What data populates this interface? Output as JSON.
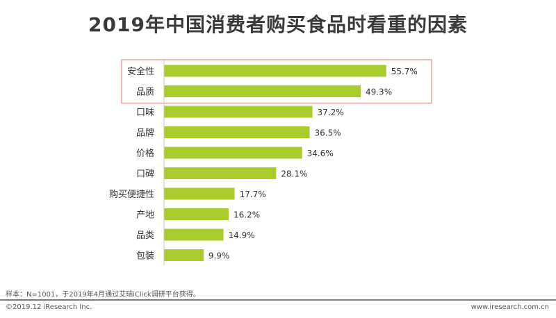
{
  "chart_data": {
    "type": "bar",
    "orientation": "horizontal",
    "title": "2019年中国消费者购买食品时看重的因素",
    "categories": [
      "安全性",
      "品质",
      "口味",
      "品牌",
      "价格",
      "口碑",
      "购买便捷性",
      "产地",
      "品类",
      "包装"
    ],
    "values": [
      55.7,
      49.3,
      37.2,
      36.5,
      34.6,
      28.1,
      17.7,
      16.2,
      14.9,
      9.9
    ],
    "value_labels": [
      "55.7%",
      "49.3%",
      "37.2%",
      "36.5%",
      "34.6%",
      "28.1%",
      "17.7%",
      "16.2%",
      "14.9%",
      "9.9%"
    ],
    "unit": "%",
    "bar_color": "#a8cc2c",
    "highlight_box_color": "#e8a0a0",
    "highlighted_categories": [
      "安全性",
      "品质"
    ],
    "grid": false
  },
  "footer": {
    "sample_note": "样本：N=1001，于2019年4月通过艾瑞iClick调研平台获得。",
    "copyright": "©2019.12 iResearch Inc.",
    "website": "www.iresearch.com.cn"
  }
}
